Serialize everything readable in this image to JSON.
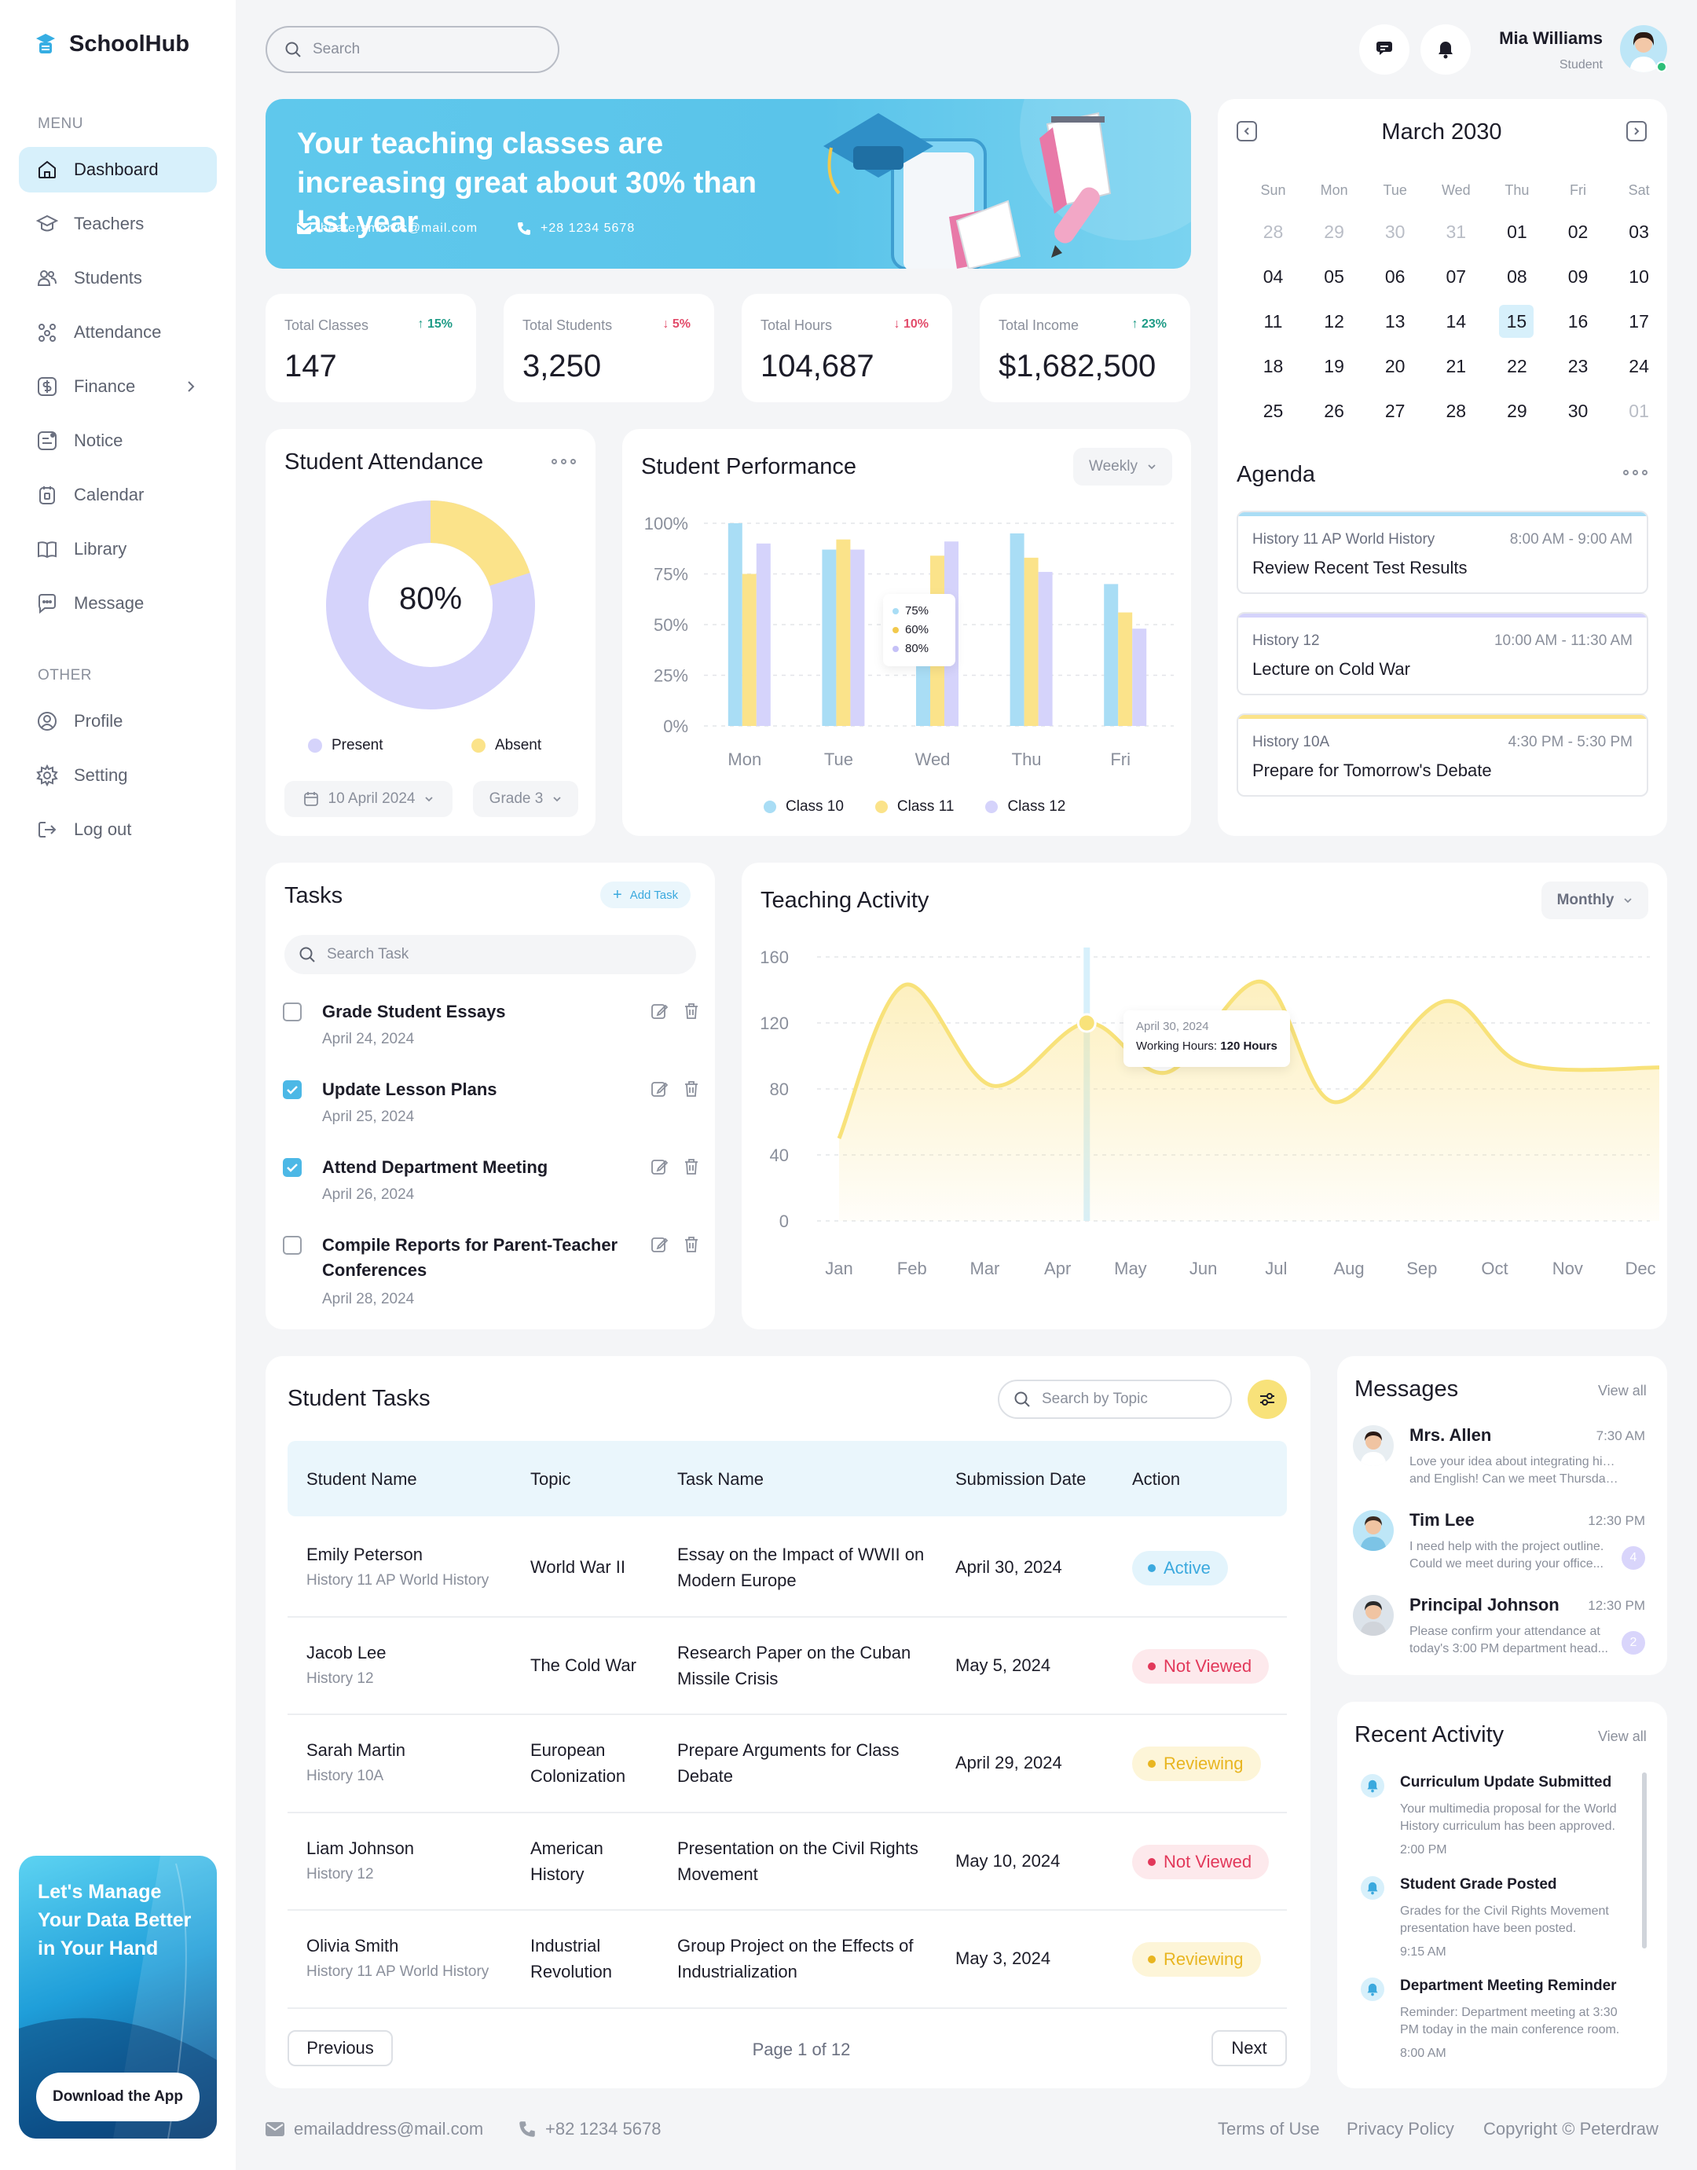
{
  "brand": {
    "name": "SchoolHub"
  },
  "sidebar": {
    "menu_label": "MENU",
    "other_label": "OTHER",
    "items": [
      {
        "label": "Dashboard",
        "icon": "home-icon"
      },
      {
        "label": "Teachers",
        "icon": "graduation-cap-icon"
      },
      {
        "label": "Students",
        "icon": "users-icon"
      },
      {
        "label": "Attendance",
        "icon": "attendance-icon"
      },
      {
        "label": "Finance",
        "icon": "dollar-icon"
      },
      {
        "label": "Notice",
        "icon": "notice-icon"
      },
      {
        "label": "Calendar",
        "icon": "calendar-icon"
      },
      {
        "label": "Library",
        "icon": "book-icon"
      },
      {
        "label": "Message",
        "icon": "message-icon"
      }
    ],
    "other_items": [
      {
        "label": "Profile",
        "icon": "profile-icon"
      },
      {
        "label": "Setting",
        "icon": "gear-icon"
      },
      {
        "label": "Log out",
        "icon": "logout-icon"
      }
    ],
    "promo": {
      "text": "Let's Manage Your Data Better in Your Hand",
      "button": "Download the App"
    }
  },
  "header": {
    "search_placeholder": "Search",
    "user": {
      "name": "Mia Williams",
      "role": "Student"
    }
  },
  "banner": {
    "headline": "Your teaching classes are increasing great about 30% than last year",
    "email": "heatersmorris@mail.com",
    "phone": "+28 1234 5678"
  },
  "stats": [
    {
      "label": "Total Classes",
      "change": "15%",
      "direction": "up",
      "value": "147"
    },
    {
      "label": "Total Students",
      "change": "5%",
      "direction": "down",
      "value": "3,250"
    },
    {
      "label": "Total Hours",
      "change": "10%",
      "direction": "down",
      "value": "104,687"
    },
    {
      "label": "Total Income",
      "change": "23%",
      "direction": "up",
      "value": "$1,682,500"
    }
  ],
  "attendance": {
    "title": "Student Attendance",
    "center_label": "80%",
    "present_fraction": 0.8,
    "legend": [
      {
        "label": "Present",
        "color": "#D5D3FB"
      },
      {
        "label": "Absent",
        "color": "#FBE38A"
      }
    ],
    "date_filter": "10 April 2024",
    "grade_filter": "Grade 3"
  },
  "performance": {
    "title": "Student Performance",
    "period": "Weekly",
    "tooltip": [
      "75%",
      "60%",
      "80%"
    ]
  },
  "calendar": {
    "title": "March 2030",
    "weekdays": [
      "Sun",
      "Mon",
      "Tue",
      "Wed",
      "Thu",
      "Fri",
      "Sat"
    ],
    "weeks": [
      [
        "28",
        "29",
        "30",
        "31",
        "01",
        "02",
        "03"
      ],
      [
        "04",
        "05",
        "06",
        "07",
        "08",
        "09",
        "10"
      ],
      [
        "11",
        "12",
        "13",
        "14",
        "15",
        "16",
        "17"
      ],
      [
        "18",
        "19",
        "20",
        "21",
        "22",
        "23",
        "24"
      ],
      [
        "25",
        "26",
        "27",
        "28",
        "29",
        "30",
        "01"
      ]
    ],
    "selected": "15"
  },
  "agenda": {
    "title": "Agenda",
    "items": [
      {
        "subject": "History 11 AP World History",
        "time": "8:00 AM - 9:00 AM",
        "title": "Review Recent Test Results",
        "color": "#A9DDF5"
      },
      {
        "subject": "History 12",
        "time": "10:00 AM - 11:30 AM",
        "title": "Lecture on Cold War",
        "color": "#D5D3FB"
      },
      {
        "subject": "History 10A",
        "time": "4:30 PM - 5:30 PM",
        "title": "Prepare for Tomorrow's Debate",
        "color": "#FBE38A"
      }
    ]
  },
  "tasks": {
    "title": "Tasks",
    "add_label": "Add Task",
    "search_placeholder": "Search Task",
    "items": [
      {
        "name": "Grade Student Essays",
        "date": "April 24, 2024",
        "done": false
      },
      {
        "name": "Update Lesson Plans",
        "date": "April 25, 2024",
        "done": true
      },
      {
        "name": "Attend Department Meeting",
        "date": "April 26, 2024",
        "done": true
      },
      {
        "name": "Compile Reports for Parent-Teacher Conferences",
        "date": "April 28, 2024",
        "done": false
      }
    ]
  },
  "activity": {
    "title": "Teaching Activity",
    "period": "Monthly",
    "tooltip_date": "April 30, 2024",
    "tooltip_label": "Working Hours:",
    "tooltip_value": "120 Hours"
  },
  "chart_data": [
    {
      "type": "bar",
      "title": "Student Performance",
      "categories": [
        "Mon",
        "Tue",
        "Wed",
        "Thu",
        "Fri"
      ],
      "yticks": [
        "100%",
        "75%",
        "50%",
        "25%",
        "0%"
      ],
      "ylim": [
        0,
        100
      ],
      "series": [
        {
          "name": "Class 10",
          "color": "#A9DDF5",
          "values": [
            100,
            87,
            62,
            95,
            70
          ]
        },
        {
          "name": "Class 11",
          "color": "#FBE38A",
          "values": [
            75,
            92,
            84,
            83,
            56
          ]
        },
        {
          "name": "Class 12",
          "color": "#D5D3FB",
          "values": [
            90,
            87,
            91,
            76,
            48
          ]
        }
      ]
    },
    {
      "type": "area",
      "title": "Teaching Activity",
      "categories": [
        "Jan",
        "Feb",
        "Mar",
        "Apr",
        "May",
        "Jun",
        "Jul",
        "Aug",
        "Sep",
        "Oct",
        "Nov",
        "Dec"
      ],
      "yticks": [
        "160",
        "120",
        "80",
        "40",
        "0"
      ],
      "ylim": [
        0,
        160
      ],
      "points": [
        [
          0,
          50
        ],
        [
          0.9,
          143
        ],
        [
          2.1,
          82
        ],
        [
          3.4,
          120
        ],
        [
          4.5,
          90
        ],
        [
          5.8,
          145
        ],
        [
          6.8,
          72
        ],
        [
          8.3,
          133
        ],
        [
          9.4,
          95
        ],
        [
          11.3,
          93
        ]
      ],
      "highlight": {
        "index": 3.4,
        "value": 120
      }
    }
  ],
  "student_tasks": {
    "title": "Student Tasks",
    "search_placeholder": "Search by Topic",
    "columns": [
      "Student Name",
      "Topic",
      "Task Name",
      "Submission Date",
      "Action"
    ],
    "rows": [
      {
        "name": "Emily Peterson",
        "class": "History 11 AP World History",
        "topic": "World War II",
        "task": "Essay on the Impact of WWII on Modern Europe",
        "date": "April 30, 2024",
        "status": "Active"
      },
      {
        "name": "Jacob Lee",
        "class": "History 12",
        "topic": "The Cold War",
        "task": "Research Paper on the Cuban Missile Crisis",
        "date": "May 5, 2024",
        "status": "Not Viewed"
      },
      {
        "name": "Sarah Martin",
        "class": "History 10A",
        "topic": "European Colonization",
        "task": "Prepare Arguments for Class Debate",
        "date": "April 29, 2024",
        "status": "Reviewing"
      },
      {
        "name": "Liam Johnson",
        "class": "History 12",
        "topic": "American History",
        "task": "Presentation on the Civil Rights Movement",
        "date": "May 10, 2024",
        "status": "Not Viewed"
      },
      {
        "name": "Olivia Smith",
        "class": "History 11 AP World History",
        "topic": "Industrial Revolution",
        "task": "Group Project on the Effects of Industrialization",
        "date": "May 3, 2024",
        "status": "Reviewing"
      }
    ],
    "status_colors": {
      "Active": {
        "bg": "#E3F4FC",
        "fg": "#3BA9DE"
      },
      "Not Viewed": {
        "bg": "#FDE9EC",
        "fg": "#E2385A"
      },
      "Reviewing": {
        "bg": "#FDF5D8",
        "fg": "#E8B520"
      }
    },
    "prev": "Previous",
    "next": "Next",
    "page": "Page 1 of 12"
  },
  "messages": {
    "title": "Messages",
    "view_all": "View all",
    "items": [
      {
        "name": "Mrs. Allen",
        "time": "7:30 AM",
        "line1": "Love your idea about integrating history",
        "line2": "and English! Can we meet Thursday ...",
        "count": ""
      },
      {
        "name": "Tim Lee",
        "time": "12:30 PM",
        "line1": "I need help with the project outline.",
        "line2": "Could we meet during your office...",
        "count": "4"
      },
      {
        "name": "Principal Johnson",
        "time": "12:30 PM",
        "line1": "Please confirm your attendance at",
        "line2": "today's 3:00 PM department head...",
        "count": "2"
      }
    ]
  },
  "recent_activity": {
    "title": "Recent Activity",
    "view_all": "View all",
    "items": [
      {
        "title": "Curriculum Update Submitted",
        "desc": "Your multimedia proposal for the World History curriculum has been approved.",
        "time": "2:00 PM"
      },
      {
        "title": "Student Grade Posted",
        "desc": "Grades for the Civil Rights Movement presentation have been posted.",
        "time": "9:15 AM"
      },
      {
        "title": "Department Meeting Reminder",
        "desc": "Reminder: Department meeting at 3:30 PM today in the main conference room.",
        "time": "8:00 AM"
      }
    ]
  },
  "footer": {
    "email": "emailaddress@mail.com",
    "phone": "+82 1234 5678",
    "terms": "Terms of Use",
    "privacy": "Privacy Policy",
    "copyright": "Copyright © Peterdraw"
  }
}
